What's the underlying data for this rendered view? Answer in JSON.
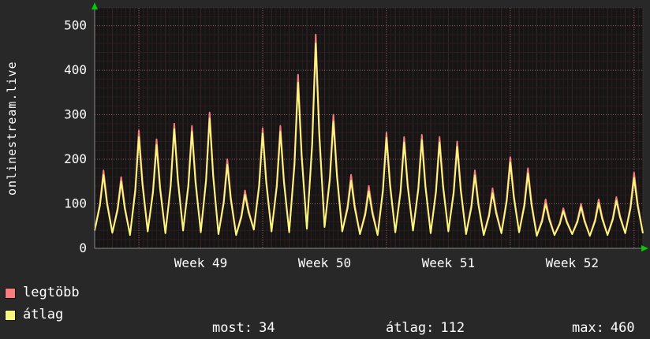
{
  "panel": {
    "background": "#282828",
    "text_color": "#ffffff"
  },
  "chart_data": {
    "type": "line",
    "vertical_label": "onlinestream.live",
    "x_tick_labels": [
      "Week 49",
      "Week 50",
      "Week 51",
      "Week 52"
    ],
    "week_label_days": [
      6,
      13,
      20,
      27
    ],
    "week_line_days": [
      2.5,
      9.5,
      16.5,
      23.5,
      30.5
    ],
    "y_ticks": [
      0,
      100,
      200,
      300,
      400,
      500
    ],
    "ylim": [
      0,
      540
    ],
    "grid": "on",
    "legend_position": "bottom-left",
    "colors": {
      "plot_bg": "#151515",
      "grid_minor": "#2c1c1c",
      "grid_day": "#3a2424",
      "grid_major": "#9a5f5f",
      "axis": "#8a8a8a",
      "arrow": "#00cc00",
      "frame": "#3c3c3c"
    },
    "daily_lows": [
      40,
      35,
      30,
      38,
      34,
      40,
      36,
      32,
      30,
      42,
      38,
      36,
      44,
      48,
      38,
      32,
      30,
      36,
      40,
      34,
      38,
      32,
      30,
      34,
      36,
      28,
      30,
      32,
      28,
      30,
      34,
      34
    ],
    "series": [
      {
        "name": "legtöbb",
        "color": "#f87e7e",
        "daily_peaks": [
          175,
          160,
          265,
          245,
          280,
          275,
          305,
          200,
          130,
          270,
          275,
          390,
          480,
          300,
          165,
          140,
          260,
          250,
          255,
          250,
          240,
          175,
          135,
          205,
          180,
          110,
          90,
          100,
          110,
          115,
          170
        ]
      },
      {
        "name": "átlag",
        "color": "#f8f87e",
        "daily_peaks": [
          165,
          150,
          250,
          232,
          268,
          262,
          292,
          188,
          120,
          258,
          262,
          372,
          460,
          285,
          152,
          128,
          248,
          238,
          243,
          238,
          228,
          164,
          124,
          193,
          168,
          100,
          84,
          93,
          102,
          107,
          158
        ]
      }
    ]
  },
  "stats": [
    {
      "label": "most:",
      "value": "34"
    },
    {
      "label": "átlag:",
      "value": "112"
    },
    {
      "label": "max:",
      "value": "460"
    }
  ]
}
